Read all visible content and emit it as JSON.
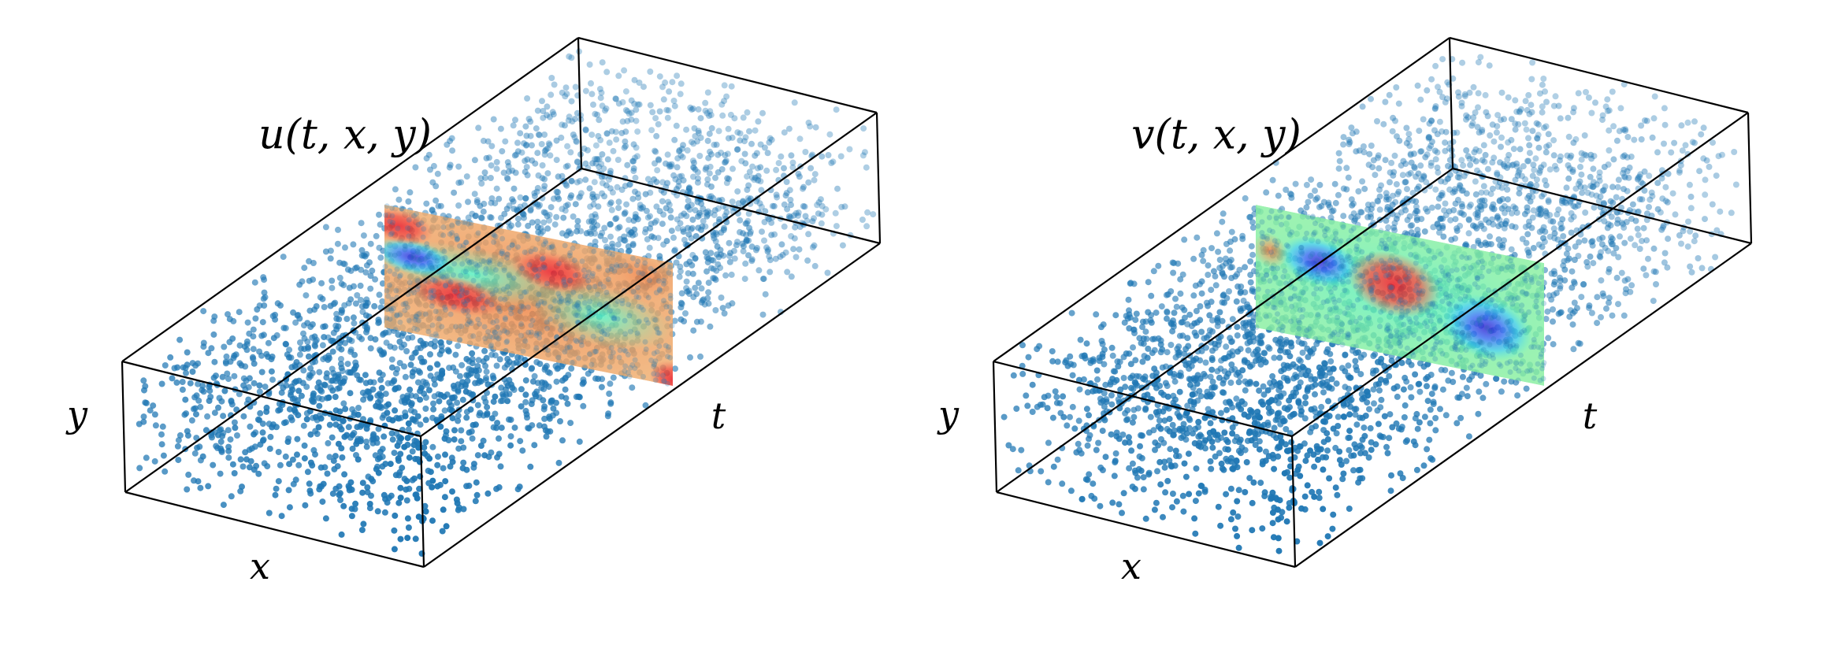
{
  "panels": [
    {
      "title": "u(t, x, y)",
      "x_label": "x",
      "y_label": "y",
      "t_label": "t"
    },
    {
      "title": "v(t, x, y)",
      "x_label": "x",
      "y_label": "y",
      "t_label": "t"
    }
  ]
}
